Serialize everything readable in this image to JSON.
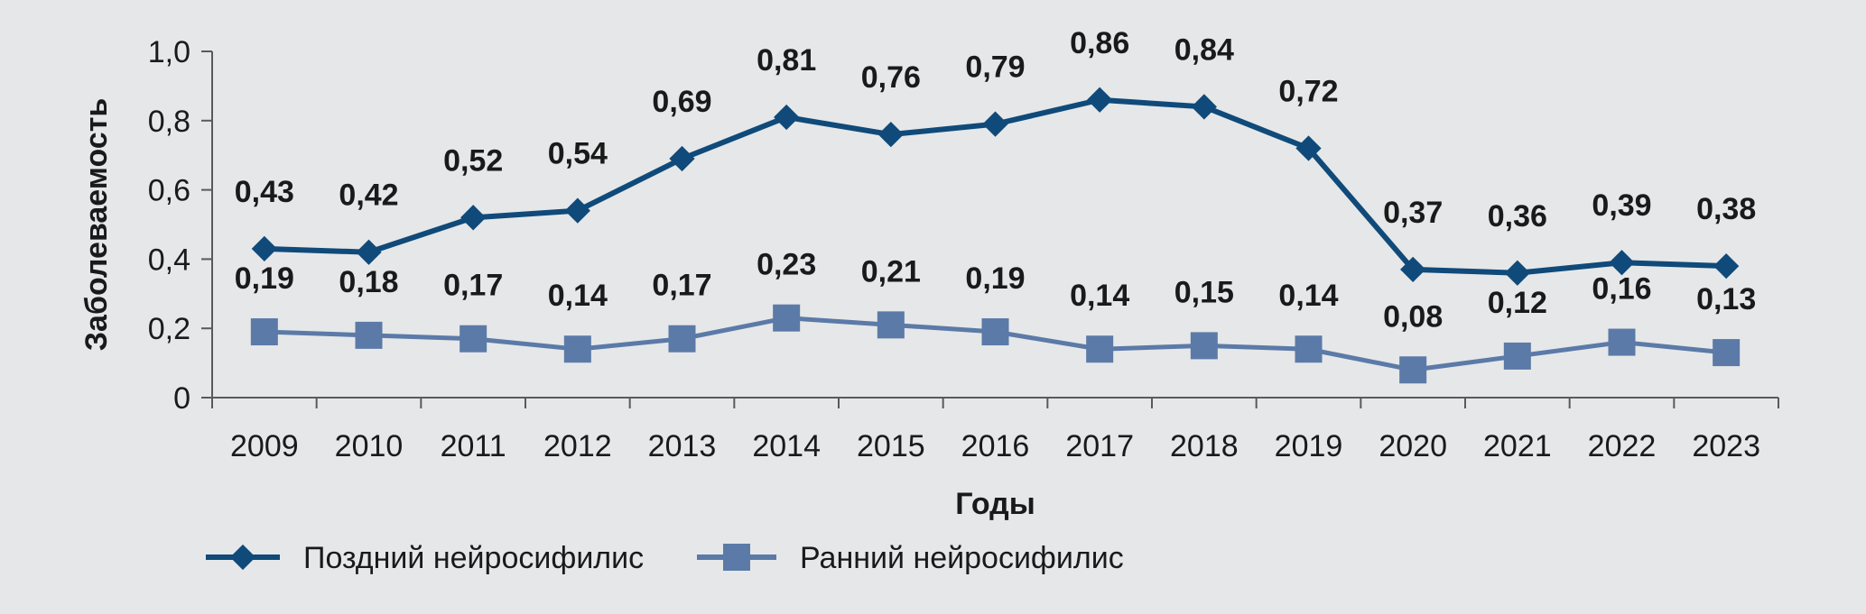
{
  "chart_data": {
    "type": "line",
    "title": "",
    "xlabel": "Годы",
    "ylabel": "Заболеваемость",
    "categories": [
      "2009",
      "2010",
      "2011",
      "2012",
      "2013",
      "2014",
      "2015",
      "2016",
      "2017",
      "2018",
      "2019",
      "2020",
      "2021",
      "2022",
      "2023"
    ],
    "ylim": [
      0,
      1.0
    ],
    "yticks": [
      "0",
      "0,2",
      "0,4",
      "0,6",
      "0,8",
      "1,0"
    ],
    "ytick_values": [
      0,
      0.2,
      0.4,
      0.6,
      0.8,
      1.0
    ],
    "grid": false,
    "legend_position": "bottom-left",
    "series": [
      {
        "name": "Поздний нейросифилис",
        "marker": "diamond",
        "color": "#0f4a7a",
        "values": [
          0.43,
          0.42,
          0.52,
          0.54,
          0.69,
          0.81,
          0.76,
          0.79,
          0.86,
          0.84,
          0.72,
          0.37,
          0.36,
          0.39,
          0.38
        ],
        "labels": [
          "0,43",
          "0,42",
          "0,52",
          "0,54",
          "0,69",
          "0,81",
          "0,76",
          "0,79",
          "0,86",
          "0,84",
          "0,72",
          "0,37",
          "0,36",
          "0,39",
          "0,38"
        ]
      },
      {
        "name": "Ранний нейросифилис",
        "marker": "square",
        "color": "#5b7aa8",
        "values": [
          0.19,
          0.18,
          0.17,
          0.14,
          0.17,
          0.23,
          0.21,
          0.19,
          0.14,
          0.15,
          0.14,
          0.08,
          0.12,
          0.16,
          0.13
        ],
        "labels": [
          "0,19",
          "0,18",
          "0,17",
          "0,14",
          "0,17",
          "0,23",
          "0,21",
          "0,19",
          "0,14",
          "0,15",
          "0,14",
          "0,08",
          "0,12",
          "0,16",
          "0,13"
        ]
      }
    ]
  }
}
